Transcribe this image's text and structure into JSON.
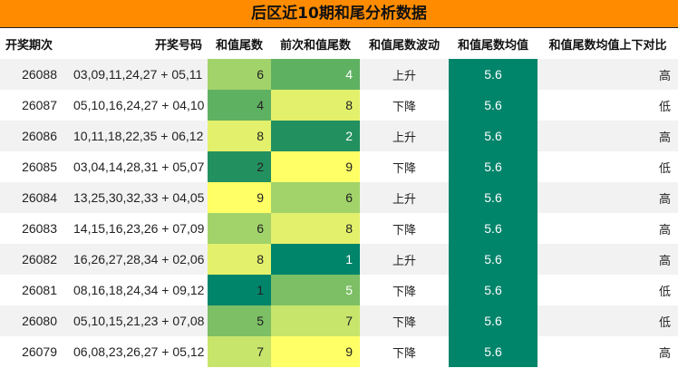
{
  "title": "后区近10期和尾分析数据",
  "headers": [
    "开奖期次",
    "开奖号码",
    "和值尾数",
    "前次和值尾数",
    "和值尾数波动",
    "和值尾数均值",
    "和值尾数均值上下对比"
  ],
  "colors": {
    "title_bg": "#ff8c00",
    "scale": {
      "1": "#00846a",
      "2": "#23905f",
      "4": "#5fb162",
      "5": "#7cbf64",
      "6": "#a2d36a",
      "7": "#c7e56b",
      "8": "#e3f06c",
      "9": "#ffff66"
    },
    "avg_bg": "#00846a"
  },
  "rows": [
    {
      "issue": "26088",
      "numbers": "03,09,11,24,27 + 05,11",
      "tail": "6",
      "prev_tail": "4",
      "trend": "上升",
      "avg": "5.6",
      "compare": "高"
    },
    {
      "issue": "26087",
      "numbers": "05,10,16,24,27 + 04,10",
      "tail": "4",
      "prev_tail": "8",
      "trend": "下降",
      "avg": "5.6",
      "compare": "低"
    },
    {
      "issue": "26086",
      "numbers": "10,11,18,22,35 + 06,12",
      "tail": "8",
      "prev_tail": "2",
      "trend": "上升",
      "avg": "5.6",
      "compare": "高"
    },
    {
      "issue": "26085",
      "numbers": "03,04,14,28,31 + 05,07",
      "tail": "2",
      "prev_tail": "9",
      "trend": "下降",
      "avg": "5.6",
      "compare": "低"
    },
    {
      "issue": "26084",
      "numbers": "13,25,30,32,33 + 04,05",
      "tail": "9",
      "prev_tail": "6",
      "trend": "上升",
      "avg": "5.6",
      "compare": "高"
    },
    {
      "issue": "26083",
      "numbers": "14,15,16,23,26 + 07,09",
      "tail": "6",
      "prev_tail": "8",
      "trend": "下降",
      "avg": "5.6",
      "compare": "高"
    },
    {
      "issue": "26082",
      "numbers": "16,26,27,28,34 + 02,06",
      "tail": "8",
      "prev_tail": "1",
      "trend": "上升",
      "avg": "5.6",
      "compare": "高"
    },
    {
      "issue": "26081",
      "numbers": "08,16,18,24,34 + 09,12",
      "tail": "1",
      "prev_tail": "5",
      "trend": "下降",
      "avg": "5.6",
      "compare": "低"
    },
    {
      "issue": "26080",
      "numbers": "05,10,15,21,23 + 07,08",
      "tail": "5",
      "prev_tail": "7",
      "trend": "下降",
      "avg": "5.6",
      "compare": "低"
    },
    {
      "issue": "26079",
      "numbers": "06,08,23,26,27 + 05,12",
      "tail": "7",
      "prev_tail": "9",
      "trend": "下降",
      "avg": "5.6",
      "compare": "高"
    }
  ]
}
